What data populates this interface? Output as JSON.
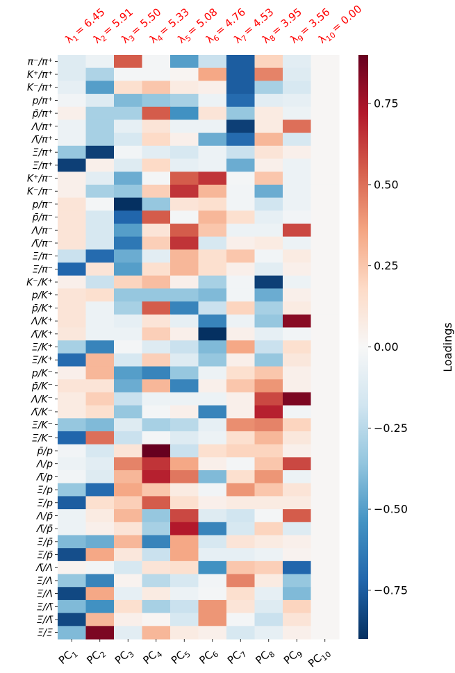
{
  "chart_data": {
    "type": "heatmap",
    "colormap": "RdBu_r",
    "vmin": -0.9,
    "vmax": 0.9,
    "colorbar": {
      "label": "Loadings",
      "ticks": [
        0.75,
        0.5,
        0.25,
        0.0,
        -0.25,
        -0.5,
        -0.75
      ],
      "tick_labels": [
        "0.75",
        "0.50",
        "0.25",
        "0.00",
        "−0.25",
        "−0.50",
        "−0.75"
      ]
    },
    "columns": [
      {
        "base": "PC",
        "sub": "1"
      },
      {
        "base": "PC",
        "sub": "2"
      },
      {
        "base": "PC",
        "sub": "3"
      },
      {
        "base": "PC",
        "sub": "4"
      },
      {
        "base": "PC",
        "sub": "5"
      },
      {
        "base": "PC",
        "sub": "6"
      },
      {
        "base": "PC",
        "sub": "7"
      },
      {
        "base": "PC",
        "sub": "8"
      },
      {
        "base": "PC",
        "sub": "9"
      },
      {
        "base": "PC",
        "sub": "10"
      }
    ],
    "eigenvalues": [
      {
        "label": "λ",
        "sub": "1",
        "value": "= 6.45"
      },
      {
        "label": "λ",
        "sub": "2",
        "value": "= 5.91"
      },
      {
        "label": "λ",
        "sub": "3",
        "value": "= 5.50"
      },
      {
        "label": "λ",
        "sub": "4",
        "value": "= 5.33"
      },
      {
        "label": "λ",
        "sub": "5",
        "value": "= 5.08"
      },
      {
        "label": "λ",
        "sub": "6",
        "value": "= 4.76"
      },
      {
        "label": "λ",
        "sub": "7",
        "value": "= 4.53"
      },
      {
        "label": "λ",
        "sub": "8",
        "value": "= 3.95"
      },
      {
        "label": "λ",
        "sub": "9",
        "value": "= 3.56"
      },
      {
        "label": "λ",
        "sub": "10",
        "value": "= 0.00"
      }
    ],
    "rows": [
      "π⁻/π⁺",
      "K⁺/π⁺",
      "K⁻/π⁺",
      "p/π⁺",
      "p̄/π⁺",
      "Λ/π⁺",
      "Λ̄/π⁺",
      "Ξ/π⁺",
      "Ξ̄/π⁺",
      "K⁺/π⁻",
      "K⁻/π⁻",
      "p/π⁻",
      "p̄/π⁻",
      "Λ/π⁻",
      "Λ̄/π⁻",
      "Ξ/π⁻",
      "Ξ̄/π⁻",
      "K⁻/K⁺",
      "p/K⁺",
      "p̄/K⁺",
      "Λ/K⁺",
      "Λ̄/K⁺",
      "Ξ/K⁺",
      "Ξ̄/K⁺",
      "p/K⁻",
      "p̄/K⁻",
      "Λ/K⁻",
      "Λ̄/K⁻",
      "Ξ/K⁻",
      "Ξ̄/K⁻",
      "p̄/p",
      "Λ/p",
      "Λ̄/p",
      "Ξ/p",
      "Ξ̄/p",
      "Λ/p̄",
      "Λ̄/p̄",
      "Ξ/p̄",
      "Ξ̄/p̄",
      "Λ̄/Λ",
      "Ξ/Λ",
      "Ξ̄/Λ",
      "Ξ/Λ̄",
      "Ξ̄/Λ̄",
      "Ξ̄/Ξ"
    ],
    "values": [
      [
        -0.12,
        -0.05,
        0.55,
        -0.02,
        -0.5,
        -0.2,
        -0.75,
        0.2,
        -0.1,
        0.01
      ],
      [
        -0.12,
        -0.28,
        -0.02,
        -0.02,
        0.02,
        0.35,
        -0.75,
        0.45,
        -0.12,
        0.01
      ],
      [
        -0.08,
        -0.5,
        0.15,
        0.25,
        0.08,
        0.05,
        -0.75,
        -0.3,
        -0.15,
        0.01
      ],
      [
        -0.03,
        -0.12,
        -0.4,
        -0.35,
        -0.3,
        -0.05,
        -0.7,
        -0.1,
        -0.08,
        0.01
      ],
      [
        0.05,
        -0.3,
        -0.3,
        0.55,
        -0.55,
        0.12,
        -0.35,
        0.08,
        -0.05,
        0.01
      ],
      [
        -0.05,
        -0.3,
        -0.08,
        0.12,
        -0.05,
        -0.05,
        -0.85,
        0.08,
        0.5,
        0.01
      ],
      [
        -0.05,
        -0.3,
        -0.15,
        0.18,
        0.05,
        -0.45,
        -0.7,
        0.3,
        -0.15,
        0.01
      ],
      [
        -0.35,
        -0.85,
        -0.03,
        -0.1,
        -0.15,
        -0.05,
        -0.2,
        0.12,
        0.05,
        0.01
      ],
      [
        -0.85,
        0.05,
        -0.12,
        0.18,
        -0.08,
        -0.05,
        -0.45,
        0.05,
        -0.05,
        0.01
      ],
      [
        0.05,
        -0.1,
        -0.45,
        -0.02,
        0.55,
        0.65,
        -0.02,
        0.25,
        -0.05,
        0.01
      ],
      [
        0.05,
        -0.3,
        -0.35,
        0.22,
        0.65,
        0.3,
        -0.03,
        -0.45,
        -0.05,
        0.01
      ],
      [
        0.12,
        -0.02,
        -0.9,
        -0.35,
        0.12,
        0.15,
        -0.03,
        -0.18,
        -0.05,
        0.01
      ],
      [
        0.12,
        -0.15,
        -0.72,
        0.55,
        -0.02,
        0.3,
        0.15,
        -0.08,
        -0.03,
        0.01
      ],
      [
        0.12,
        -0.15,
        -0.5,
        0.12,
        0.55,
        0.25,
        -0.05,
        -0.05,
        0.6,
        0.01
      ],
      [
        0.12,
        -0.15,
        -0.65,
        0.22,
        0.65,
        -0.15,
        0.05,
        0.08,
        -0.05,
        0.01
      ],
      [
        -0.2,
        -0.7,
        -0.45,
        -0.1,
        0.3,
        0.15,
        0.25,
        -0.03,
        0.08,
        0.01
      ],
      [
        -0.72,
        0.12,
        -0.5,
        0.15,
        0.3,
        0.15,
        0.05,
        -0.1,
        0.05,
        0.01
      ],
      [
        0.05,
        -0.2,
        0.2,
        0.28,
        0.05,
        -0.3,
        -0.03,
        -0.85,
        -0.05,
        0.01
      ],
      [
        0.12,
        0.15,
        -0.35,
        -0.35,
        -0.35,
        -0.4,
        -0.03,
        -0.45,
        0.05,
        0.01
      ],
      [
        0.12,
        -0.05,
        -0.3,
        0.55,
        -0.6,
        -0.2,
        0.2,
        -0.3,
        0.08,
        0.01
      ],
      [
        0.12,
        -0.05,
        -0.08,
        0.12,
        -0.08,
        -0.6,
        -0.05,
        -0.35,
        0.82,
        0.01
      ],
      [
        0.1,
        -0.05,
        -0.05,
        0.22,
        0.05,
        -0.9,
        0.05,
        -0.08,
        -0.03,
        0.01
      ],
      [
        -0.3,
        -0.6,
        -0.02,
        -0.12,
        -0.2,
        -0.4,
        0.35,
        -0.2,
        0.15,
        0.01
      ],
      [
        -0.7,
        0.3,
        -0.15,
        0.22,
        -0.12,
        -0.35,
        0.05,
        -0.35,
        0.1,
        0.01
      ],
      [
        0.05,
        0.3,
        -0.5,
        -0.6,
        -0.35,
        -0.05,
        0.15,
        0.25,
        0.05,
        0.01
      ],
      [
        0.12,
        0.12,
        -0.45,
        0.3,
        -0.6,
        0.05,
        0.25,
        0.4,
        0.05,
        0.01
      ],
      [
        0.08,
        0.22,
        -0.2,
        -0.05,
        -0.05,
        -0.05,
        0.05,
        0.6,
        0.85,
        0.01
      ],
      [
        0.08,
        0.15,
        -0.35,
        -0.02,
        0.05,
        -0.6,
        0.05,
        0.7,
        -0.03,
        0.01
      ],
      [
        -0.35,
        -0.4,
        -0.12,
        -0.3,
        -0.25,
        -0.08,
        0.42,
        0.45,
        0.2,
        0.01
      ],
      [
        -0.72,
        0.5,
        -0.2,
        -0.02,
        -0.12,
        -0.05,
        0.15,
        0.3,
        0.1,
        0.01
      ],
      [
        -0.03,
        -0.15,
        0.12,
        0.9,
        -0.2,
        0.15,
        0.2,
        0.2,
        0.05,
        0.01
      ],
      [
        -0.05,
        -0.1,
        0.45,
        0.65,
        0.35,
        0.05,
        -0.02,
        0.25,
        0.6,
        0.01
      ],
      [
        -0.03,
        -0.12,
        0.3,
        0.7,
        0.48,
        -0.4,
        0.15,
        0.4,
        -0.05,
        0.01
      ],
      [
        -0.35,
        -0.7,
        0.35,
        0.25,
        0.08,
        -0.03,
        0.4,
        0.25,
        0.12,
        0.01
      ],
      [
        -0.75,
        0.15,
        0.22,
        0.55,
        0.15,
        0.05,
        0.08,
        0.08,
        0.08,
        0.01
      ],
      [
        -0.05,
        0.08,
        0.3,
        -0.35,
        0.6,
        -0.12,
        -0.18,
        -0.02,
        0.55,
        0.01
      ],
      [
        -0.05,
        0.05,
        0.12,
        -0.3,
        0.72,
        -0.6,
        -0.15,
        0.2,
        -0.12,
        0.01
      ],
      [
        -0.4,
        -0.45,
        0.3,
        -0.6,
        0.35,
        -0.15,
        0.12,
        0.08,
        0.05,
        0.01
      ],
      [
        -0.8,
        0.35,
        0.1,
        -0.2,
        0.35,
        -0.08,
        -0.08,
        -0.05,
        0.03,
        0.01
      ],
      [
        0.03,
        -0.03,
        -0.15,
        0.12,
        0.15,
        -0.55,
        0.25,
        0.22,
        -0.72,
        0.01
      ],
      [
        -0.35,
        -0.6,
        0.03,
        -0.25,
        -0.15,
        -0.03,
        0.45,
        0.08,
        -0.35,
        0.01
      ],
      [
        -0.82,
        0.35,
        -0.08,
        0.08,
        -0.05,
        -0.02,
        0.15,
        -0.08,
        -0.4,
        0.01
      ],
      [
        -0.4,
        -0.55,
        0.15,
        -0.3,
        -0.2,
        0.4,
        0.12,
        -0.12,
        0.2,
        0.01
      ],
      [
        -0.82,
        0.3,
        0.05,
        0.02,
        -0.15,
        0.4,
        -0.02,
        -0.2,
        0.12,
        0.01
      ],
      [
        -0.4,
        0.85,
        -0.1,
        0.3,
        0.08,
        0.05,
        -0.15,
        -0.08,
        0.05,
        0.01
      ]
    ]
  }
}
